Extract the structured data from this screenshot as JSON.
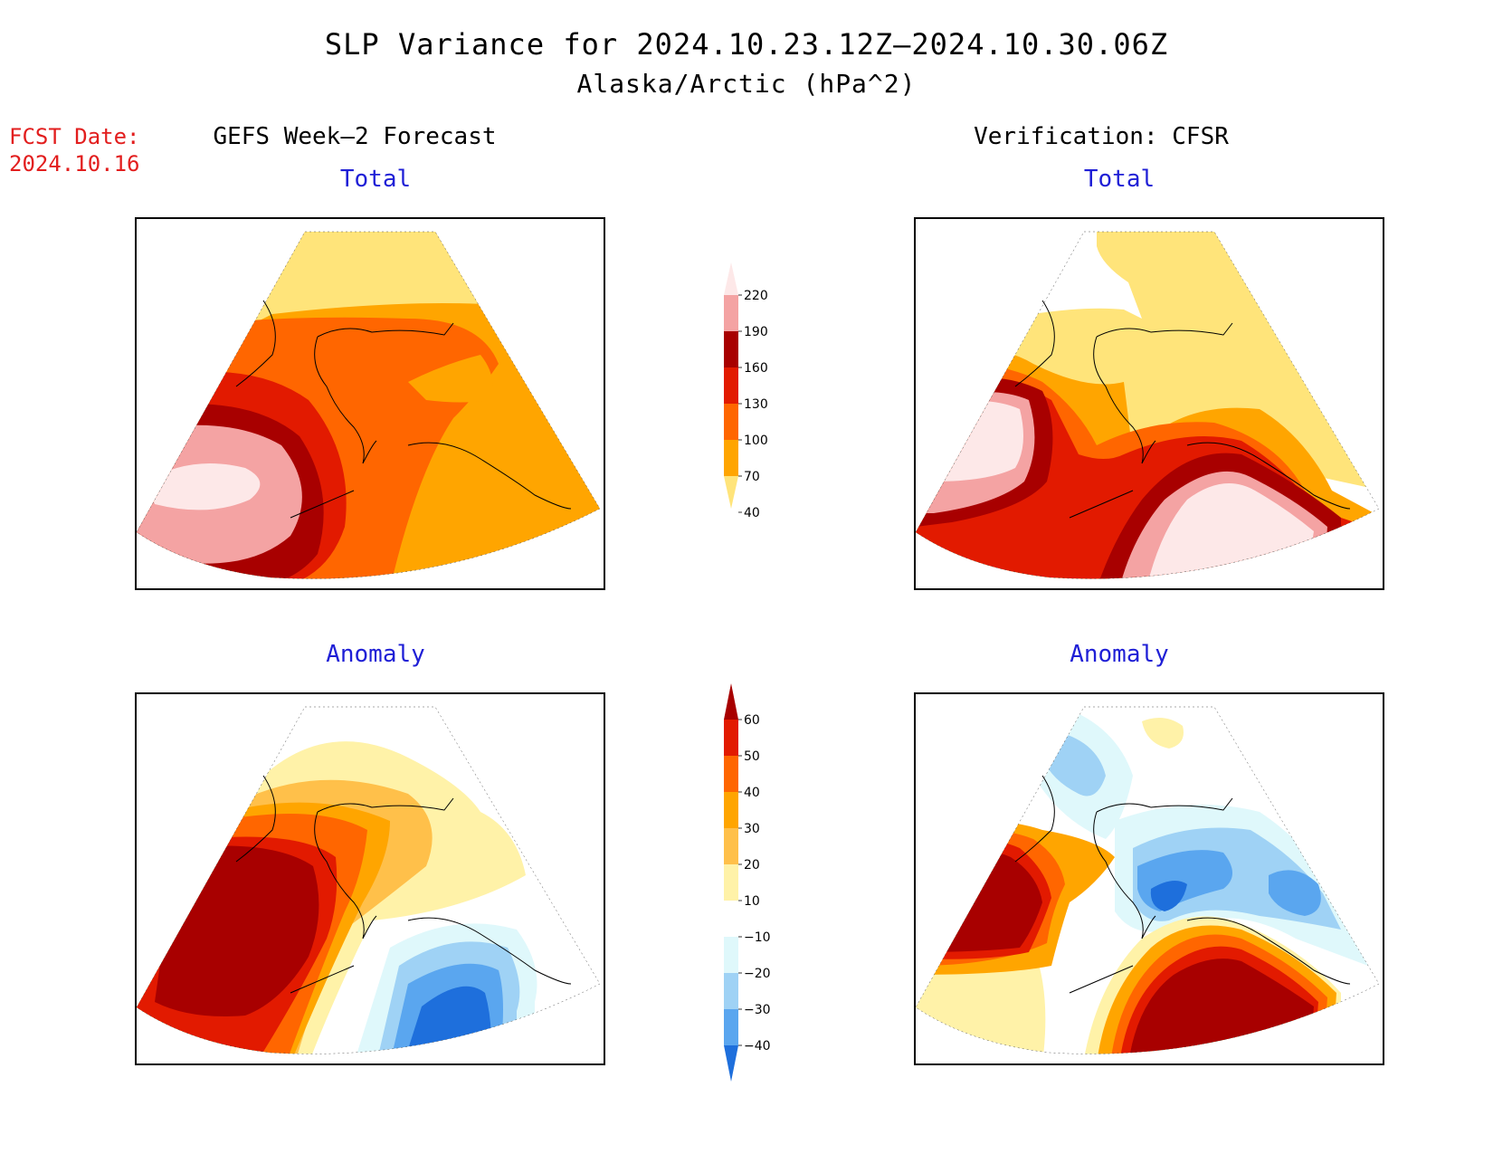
{
  "header": {
    "title": "SLP Variance for 2024.10.23.12Z–2024.10.30.06Z",
    "subtitle": "Alaska/Arctic (hPa^2)",
    "fcst_label": "FCST Date:",
    "fcst_date": "2024.10.16"
  },
  "columns": {
    "left": "GEFS Week–2 Forecast",
    "right": "Verification: CFSR"
  },
  "panels": {
    "total_title": "Total",
    "anomaly_title": "Anomaly"
  },
  "colorbars": {
    "total": {
      "labels": [
        "220",
        "190",
        "160",
        "130",
        "100",
        "70",
        "40"
      ],
      "colors": [
        "#fde8e8",
        "#f4a3a3",
        "#a80000",
        "#e21a00",
        "#ff6600",
        "#ffa500",
        "#ffe47a"
      ]
    },
    "anomaly": {
      "labels": [
        "60",
        "50",
        "40",
        "30",
        "20",
        "10",
        "−10",
        "−20",
        "−30",
        "−40"
      ],
      "colors": [
        "#a80000",
        "#e21a00",
        "#ff6600",
        "#ffa500",
        "#ffc04a",
        "#fff2a8",
        "#ffffff",
        "#dff8fb",
        "#9fd2f5",
        "#5aa6ef",
        "#1e6fdc"
      ]
    }
  },
  "palette": {
    "pale_pink": "#fde8e8",
    "pink": "#f4a3a3",
    "dark_red": "#a80000",
    "red": "#e21a00",
    "dark_orange": "#ff6600",
    "orange": "#ffa500",
    "light_orange": "#ffc04a",
    "yellow": "#ffe47a",
    "pale_yellow": "#fff2a8",
    "pale_cyan": "#dff8fb",
    "light_blue": "#9fd2f5",
    "blue": "#5aa6ef",
    "deep_blue": "#1e6fdc"
  }
}
